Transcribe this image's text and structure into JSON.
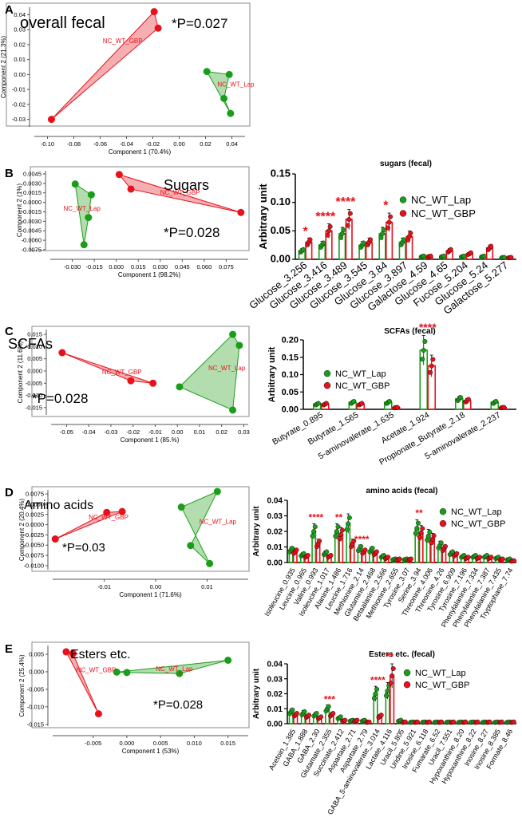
{
  "colors": {
    "green": "#1a9e1a",
    "red": "#e8101a",
    "green_fill": "#a7d7a1",
    "red_fill": "#f3a0a3",
    "sig": "#e8101a"
  },
  "panels": [
    {
      "letter": "A",
      "title": "overall fecal",
      "pvalue": "*P=0.027"
    },
    {
      "letter": "B",
      "title": "Sugars",
      "pvalue": "*P=0.028"
    },
    {
      "letter": "C",
      "title": "SCFAs",
      "pvalue": "*P=0.028"
    },
    {
      "letter": "D",
      "title": "Amino acids",
      "pvalue": "*P=0.03"
    },
    {
      "letter": "E",
      "title": "Esters etc.",
      "pvalue": "*P=0.028"
    }
  ],
  "chart_data": [
    {
      "type": "scatter",
      "panel": "A",
      "xlabel": "Component 1 (70.4%)",
      "ylabel": "Component 2 (21.3%)",
      "xlim": [
        -0.11,
        0.05
      ],
      "ylim": [
        -0.035,
        0.045
      ],
      "xticks": [
        -0.1,
        -0.08,
        -0.06,
        -0.04,
        -0.02,
        0.0,
        0.02,
        0.04
      ],
      "xtick_labels": [
        "-0.10",
        "-0.08",
        "-0.06",
        "-0.04",
        "-0.02",
        "0.00",
        "0.02",
        "0.04"
      ],
      "yticks": [
        -0.03,
        -0.02,
        -0.01,
        0.0,
        0.01,
        0.02,
        0.03,
        0.04
      ],
      "ytick_labels": [
        "-0.03",
        "-0.02",
        "-0.01",
        "0.00",
        "0.01",
        "0.02",
        "0.03",
        "0.04"
      ],
      "series": [
        {
          "name": "NC_WT_GBP",
          "color": "red",
          "points": [
            [
              -0.019,
              0.042
            ],
            [
              -0.016,
              0.031
            ],
            [
              -0.097,
              -0.03
            ]
          ],
          "label_at": [
            -0.058,
            0.021
          ]
        },
        {
          "name": "NC_WT_Lap",
          "color": "green",
          "points": [
            [
              0.021,
              0.002
            ],
            [
              0.038,
              0.0
            ],
            [
              0.034,
              -0.016
            ],
            [
              0.039,
              -0.026
            ]
          ],
          "label_at": [
            0.029,
            -0.008
          ]
        }
      ]
    },
    {
      "type": "scatter",
      "panel": "B",
      "xlabel": "Component 1 (98.2%)",
      "ylabel": "Component 2 (1%)",
      "xlim": [
        -0.045,
        0.09
      ],
      "ylim": [
        -0.0075,
        0.005
      ],
      "xticks": [
        -0.03,
        -0.015,
        0.0,
        0.015,
        0.03,
        0.045,
        0.06,
        0.075
      ],
      "xtick_labels": [
        "-0.030",
        "-0.015",
        "0.000",
        "0.015",
        "0.030",
        "0.045",
        "0.060",
        "0.075"
      ],
      "yticks": [
        -0.0075,
        -0.006,
        -0.0045,
        -0.003,
        -0.0015,
        0.0,
        0.0015,
        0.003,
        0.0045
      ],
      "ytick_labels": [
        "-0.0075",
        "-0.0060",
        "-0.0045",
        "-0.0030",
        "-0.0015",
        "0.0000",
        "0.0015",
        "0.0030",
        "0.0045"
      ],
      "series": [
        {
          "name": "NC_WT_GBP",
          "color": "red",
          "points": [
            [
              0.002,
              0.0044
            ],
            [
              0.01,
              0.0021
            ],
            [
              0.085,
              -0.0016
            ]
          ],
          "label_at": [
            0.03,
            0.0012
          ]
        },
        {
          "name": "NC_WT_Lap",
          "color": "green",
          "points": [
            [
              -0.028,
              0.0029
            ],
            [
              -0.017,
              0.0012
            ],
            [
              -0.019,
              -0.0024
            ],
            [
              -0.022,
              -0.0067
            ]
          ],
          "label_at": [
            -0.036,
            -0.0013
          ]
        }
      ]
    },
    {
      "type": "bar",
      "panel": "B-bars",
      "title": "sugars (fecal)",
      "ylabel": "Arbitrary unit",
      "ylim": [
        0,
        0.15
      ],
      "yticks": [
        0,
        0.05,
        0.1,
        0.15
      ],
      "ytick_labels": [
        "0.00",
        "0.05",
        "0.10",
        "0.15"
      ],
      "categories": [
        "Glucose_3.256",
        "Glucose_3.416",
        "Glucose_3.489",
        "Glucose_3.545",
        "Glucose_3.84",
        "Glucose_3.897",
        "Galactose_4.59",
        "Glucose_4.65",
        "Fucose_5.204",
        "Glucose_5.24",
        "Galactose_5.277"
      ],
      "series": [
        {
          "name": "NC_WT_Lap",
          "values": [
            0.015,
            0.025,
            0.045,
            0.025,
            0.045,
            0.03,
            0.005,
            0.005,
            0.005,
            0.005,
            0.003
          ]
        },
        {
          "name": "NC_WT_GBP",
          "values": [
            0.03,
            0.05,
            0.07,
            0.03,
            0.065,
            0.04,
            0.005,
            0.015,
            0.01,
            0.02,
            0.003
          ]
        }
      ],
      "significance": [
        {
          "index": 0,
          "label": "*"
        },
        {
          "index": 1,
          "label": "****"
        },
        {
          "index": 2,
          "label": "****"
        },
        {
          "index": 4,
          "label": "*"
        }
      ]
    },
    {
      "type": "scatter",
      "panel": "C",
      "xlabel": "Component 1 (85.%)",
      "ylabel": "Component 2 (11.6%)",
      "xlim": [
        -0.057,
        0.032
      ],
      "ylim": [
        -0.018,
        0.017
      ],
      "xticks": [
        -0.05,
        -0.04,
        -0.03,
        -0.02,
        -0.01,
        0.0,
        0.01,
        0.02,
        0.03
      ],
      "xtick_labels": [
        "-0.05",
        "-0.04",
        "-0.03",
        "-0.02",
        "-0.01",
        "0.00",
        "0.01",
        "0.02",
        "0.03"
      ],
      "yticks": [
        -0.015,
        -0.01,
        -0.005,
        0.0,
        0.005,
        0.01,
        0.015
      ],
      "ytick_labels": [
        "-0.015",
        "-0.010",
        "-0.005",
        "0.000",
        "0.005",
        "0.010",
        "0.015"
      ],
      "series": [
        {
          "name": "NC_WT_GBP",
          "color": "red",
          "points": [
            [
              -0.052,
              0.0075
            ],
            [
              -0.021,
              -0.004
            ],
            [
              -0.011,
              -0.005
            ]
          ],
          "label_at": [
            -0.034,
            -0.0013
          ]
        },
        {
          "name": "NC_WT_Lap",
          "color": "green",
          "points": [
            [
              0.001,
              -0.0065
            ],
            [
              0.025,
              0.015
            ],
            [
              0.028,
              0.0105
            ],
            [
              0.025,
              -0.016
            ]
          ],
          "label_at": [
            0.014,
            0.0003
          ]
        }
      ]
    },
    {
      "type": "bar",
      "panel": "C-bars",
      "title": "SCFAs (fecal)",
      "ylabel": "Arbitrary unit",
      "ylim": [
        0,
        0.2
      ],
      "yticks": [
        0,
        0.05,
        0.1,
        0.15,
        0.2
      ],
      "ytick_labels": [
        "0.00",
        "0.05",
        "0.10",
        "0.15",
        "0.20"
      ],
      "categories": [
        "Butyrate_0.895",
        "Butyrate_1.565",
        "5-aminovalerate_1.635",
        "Acetate_1.924",
        "Propionate_Butyrate_2.18",
        "5-aminovalerate_2.237"
      ],
      "series": [
        {
          "name": "NC_WT_Lap",
          "values": [
            0.015,
            0.02,
            0.02,
            0.17,
            0.03,
            0.02
          ]
        },
        {
          "name": "NC_WT_GBP",
          "values": [
            0.015,
            0.015,
            0.005,
            0.125,
            0.025,
            0.005
          ]
        }
      ],
      "significance": [
        {
          "index": 3,
          "label": "****"
        }
      ]
    },
    {
      "type": "scatter",
      "panel": "D",
      "xlabel": "Component 1 (71.6%)",
      "ylabel": "Component 2 (20.4%)",
      "xlim": [
        -0.02,
        0.018
      ],
      "ylim": [
        -0.011,
        0.0085
      ],
      "xticks": [
        -0.01,
        0.0,
        0.01
      ],
      "xtick_labels": [
        "-0.01",
        "0.00",
        "0.01"
      ],
      "yticks": [
        -0.01,
        -0.0075,
        -0.005,
        -0.0025,
        0.0,
        0.0025,
        0.005,
        0.0075
      ],
      "ytick_labels": [
        "-0.0100",
        "-0.0075",
        "-0.0050",
        "-0.0025",
        "0.0000",
        "0.0025",
        "0.0050",
        "0.0075"
      ],
      "series": [
        {
          "name": "NC_WT_GBP",
          "color": "red",
          "points": [
            [
              -0.0095,
              0.003
            ],
            [
              -0.0065,
              0.0032
            ],
            [
              -0.0195,
              -0.0035
            ]
          ],
          "label_at": [
            -0.013,
            0.0013
          ]
        },
        {
          "name": "NC_WT_Lap",
          "color": "green",
          "points": [
            [
              0.005,
              0.0043
            ],
            [
              0.012,
              0.0081
            ],
            [
              0.0068,
              -0.0051
            ],
            [
              0.0105,
              -0.0095
            ]
          ],
          "label_at": [
            0.0085,
            0.0002
          ]
        }
      ]
    },
    {
      "type": "bar",
      "panel": "D-bars",
      "title": "amino acids (fecal)",
      "ylabel": "Arbitrary unit",
      "ylim": [
        0,
        0.04
      ],
      "yticks": [
        0,
        0.01,
        0.02,
        0.03,
        0.04
      ],
      "ytick_labels": [
        "0.00",
        "0.01",
        "0.02",
        "0.03",
        "0.04"
      ],
      "categories": [
        "Isoleucine_0.935",
        "Leucine_0.965",
        "Valine_0.993",
        "Isoleucine_1.017",
        "Alanine_1.486",
        "Leucine_1.716",
        "Methionine_2.14",
        "Glutamine_2.468",
        "Betaalanine_2.566",
        "Methionine_2.655",
        "Tyrosine_3.07",
        "Serine_3.94",
        "Threonine_4.006",
        "Threonine_4.26",
        "Tyrosine_6.909",
        "Tyrosine_7.196",
        "Phenylalanine_7.334",
        "Phenylalanine_7.387",
        "Phenylalanine_7.435",
        "Tryptophane_7.74"
      ],
      "series": [
        {
          "name": "NC_WT_Lap",
          "values": [
            0.008,
            0.005,
            0.02,
            0.006,
            0.02,
            0.025,
            0.009,
            0.008,
            0.004,
            0.002,
            0.002,
            0.022,
            0.017,
            0.011,
            0.006,
            0.004,
            0.004,
            0.004,
            0.003,
            0.002
          ]
        },
        {
          "name": "NC_WT_GBP",
          "values": [
            0.007,
            0.004,
            0.012,
            0.004,
            0.018,
            0.012,
            0.007,
            0.006,
            0.003,
            0.002,
            0.002,
            0.019,
            0.015,
            0.009,
            0.005,
            0.003,
            0.003,
            0.003,
            0.002,
            0.001
          ]
        }
      ],
      "significance": [
        {
          "index": 2,
          "label": "****"
        },
        {
          "index": 4,
          "label": "**"
        },
        {
          "index": 6,
          "label": "****"
        },
        {
          "index": 11,
          "label": "**"
        }
      ]
    },
    {
      "type": "scatter",
      "panel": "E",
      "xlabel": "Component 1 (53%)",
      "ylabel": "Component 2 (25.4%)",
      "xlim": [
        -0.011,
        0.018
      ],
      "ylim": [
        -0.0155,
        0.0075
      ],
      "xticks": [
        -0.005,
        0.0,
        0.005,
        0.01,
        0.015
      ],
      "xtick_labels": [
        "-0.005",
        "0.000",
        "0.005",
        "0.010",
        "0.015"
      ],
      "yticks": [
        -0.015,
        -0.01,
        -0.005,
        0.0,
        0.005
      ],
      "ytick_labels": [
        "-0.015",
        "-0.010",
        "-0.005",
        "0.000",
        "0.005"
      ],
      "series": [
        {
          "name": "NC_WT_GBP",
          "color": "red",
          "points": [
            [
              -0.009,
              0.0057
            ],
            [
              -0.008,
              0.0052
            ],
            [
              -0.0042,
              -0.012
            ]
          ],
          "label_at": [
            -0.0075,
            -0.0001
          ]
        },
        {
          "name": "NC_WT_Lap",
          "color": "green",
          "points": [
            [
              -0.0015,
              -0.0001
            ],
            [
              0.0,
              -0.0002
            ],
            [
              0.0078,
              -0.0005
            ],
            [
              0.015,
              0.0033
            ]
          ],
          "label_at": [
            0.0043,
            0.0002
          ]
        }
      ]
    },
    {
      "type": "bar",
      "panel": "E-bars",
      "title": "Esters etc. (fecal)",
      "ylabel": "Arbitrary unit",
      "ylim": [
        0,
        0.04
      ],
      "yticks": [
        0,
        0.01,
        0.02,
        0.03,
        0.04
      ],
      "ytick_labels": [
        "0.00",
        "0.01",
        "0.02",
        "0.03",
        "0.04"
      ],
      "categories": [
        "Acetoin_1.385",
        "GABA_1.888",
        "GABA_2.30",
        "Glutamate_2.355",
        "Succinate_2.412",
        "Aspartate_2.71",
        "Aspartate_2.79",
        "GABA_5-aminovalerate_3.014",
        "Lactate_4.116",
        "Uracil_5.805",
        "Uridine_5.921",
        "Inosine_6.118",
        "Fumarate_6.52",
        "Uracil_7.551",
        "Hypoxanthine_8.20",
        "Hypoxanthine_8.22",
        "Inosine_8.27",
        "Inosine_8.385",
        "Formate_8.46"
      ],
      "series": [
        {
          "name": "NC_WT_Lap",
          "values": [
            0.008,
            0.007,
            0.006,
            0.01,
            0.004,
            0.002,
            0.002,
            0.02,
            0.022,
            0.002,
            0.001,
            0.001,
            0.001,
            0.001,
            0.001,
            0.001,
            0.001,
            0.001,
            0.001
          ]
        },
        {
          "name": "NC_WT_GBP",
          "values": [
            0.006,
            0.005,
            0.004,
            0.006,
            0.002,
            0.002,
            0.001,
            0.005,
            0.032,
            0.001,
            0.001,
            0.001,
            0.001,
            0.001,
            0.001,
            0.001,
            0.001,
            0.001,
            0.001
          ]
        }
      ],
      "significance": [
        {
          "index": 3,
          "label": "***"
        },
        {
          "index": 7,
          "label": "****"
        },
        {
          "index": 8,
          "label": "**"
        }
      ]
    }
  ]
}
